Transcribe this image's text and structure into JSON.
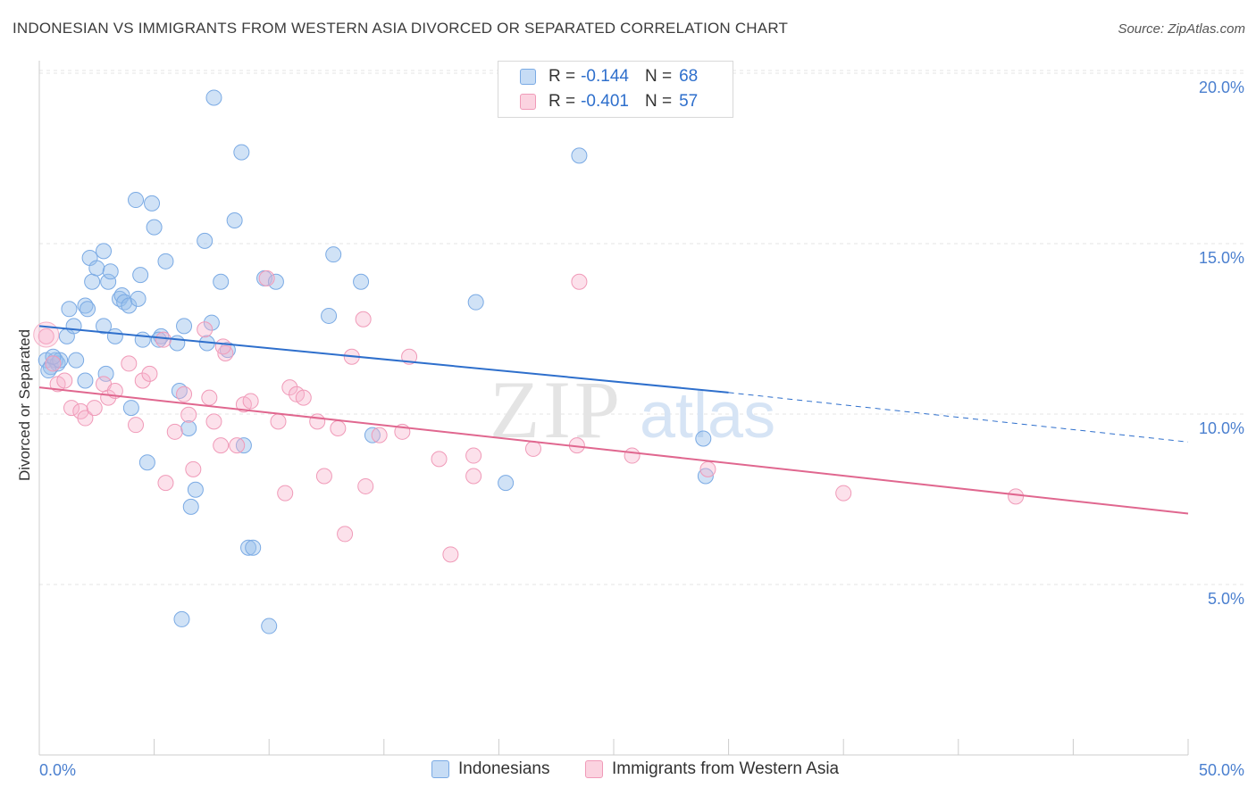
{
  "title": "INDONESIAN VS IMMIGRANTS FROM WESTERN ASIA DIVORCED OR SEPARATED CORRELATION CHART",
  "source": "Source: ZipAtlas.com",
  "watermark": {
    "zip": "ZIP",
    "atlas": "atlas"
  },
  "colors": {
    "blue": "#6a9fdc",
    "blue_line": "#2e6fcc",
    "pink": "#f08cae",
    "pink_line": "#e0678f",
    "axis_text": "#4a7fcf"
  },
  "legend": {
    "rows": [
      {
        "r_label": "R =",
        "r_value": "-0.144",
        "n_label": "N =",
        "n_value": "68"
      },
      {
        "r_label": "R =",
        "r_value": "-0.401",
        "n_label": "N =",
        "n_value": "57"
      }
    ]
  },
  "bottom_legend": {
    "series1": "Indonesians",
    "series2": "Immigrants from Western Asia"
  },
  "chart_data": {
    "type": "scatter",
    "title": "INDONESIAN VS IMMIGRANTS FROM WESTERN ASIA DIVORCED OR SEPARATED CORRELATION CHART",
    "xlabel": "",
    "ylabel": "Divorced or Separated",
    "xlim": [
      0,
      50
    ],
    "ylim": [
      0,
      20.5
    ],
    "x_tick_labels": [
      "0.0%",
      "50.0%"
    ],
    "y_ticks": [
      5,
      10,
      15,
      20
    ],
    "y_tick_labels": [
      "5.0%",
      "10.0%",
      "15.0%",
      "20.0%"
    ],
    "series": [
      {
        "name": "Indonesians",
        "R": -0.144,
        "N": 68,
        "trend": {
          "x1": 0,
          "y1": 13.0,
          "x2": 30,
          "y2": 11.05,
          "dash_x2": 50,
          "dash_y2": 9.6
        },
        "points": [
          [
            0.3,
            12.0
          ],
          [
            0.5,
            11.8
          ],
          [
            0.7,
            12.0
          ],
          [
            0.8,
            11.9
          ],
          [
            0.9,
            12.0
          ],
          [
            0.4,
            11.7
          ],
          [
            1.2,
            12.7
          ],
          [
            1.3,
            13.5
          ],
          [
            1.5,
            13.0
          ],
          [
            2.0,
            13.6
          ],
          [
            2.0,
            11.4
          ],
          [
            2.1,
            13.5
          ],
          [
            2.2,
            15.0
          ],
          [
            2.3,
            14.3
          ],
          [
            2.5,
            14.7
          ],
          [
            2.8,
            13.0
          ],
          [
            2.8,
            15.2
          ],
          [
            2.9,
            11.6
          ],
          [
            3.0,
            14.3
          ],
          [
            3.1,
            14.6
          ],
          [
            3.3,
            12.7
          ],
          [
            3.5,
            13.8
          ],
          [
            3.6,
            13.9
          ],
          [
            3.7,
            13.7
          ],
          [
            3.9,
            13.6
          ],
          [
            4.0,
            10.6
          ],
          [
            4.2,
            16.7
          ],
          [
            4.3,
            13.8
          ],
          [
            4.4,
            14.5
          ],
          [
            4.5,
            12.6
          ],
          [
            4.7,
            9.0
          ],
          [
            4.9,
            16.6
          ],
          [
            5.0,
            15.9
          ],
          [
            5.3,
            12.7
          ],
          [
            5.5,
            14.9
          ],
          [
            6.0,
            12.5
          ],
          [
            6.1,
            11.1
          ],
          [
            6.2,
            4.4
          ],
          [
            6.3,
            13.0
          ],
          [
            6.5,
            10.0
          ],
          [
            6.6,
            7.7
          ],
          [
            6.8,
            8.2
          ],
          [
            7.2,
            15.5
          ],
          [
            7.3,
            12.5
          ],
          [
            7.5,
            13.1
          ],
          [
            7.6,
            19.7
          ],
          [
            7.9,
            14.3
          ],
          [
            8.2,
            12.3
          ],
          [
            8.5,
            16.1
          ],
          [
            8.8,
            18.1
          ],
          [
            8.9,
            9.5
          ],
          [
            9.1,
            6.5
          ],
          [
            9.3,
            6.5
          ],
          [
            9.8,
            14.4
          ],
          [
            10.3,
            14.3
          ],
          [
            10.0,
            4.2
          ],
          [
            12.6,
            13.3
          ],
          [
            12.8,
            15.1
          ],
          [
            14.0,
            14.3
          ],
          [
            14.5,
            9.8
          ],
          [
            19.0,
            13.7
          ],
          [
            20.3,
            8.4
          ],
          [
            23.5,
            18.0
          ],
          [
            28.9,
            9.7
          ],
          [
            29.0,
            8.6
          ],
          [
            5.2,
            12.6
          ],
          [
            1.6,
            12.0
          ],
          [
            0.6,
            12.1
          ]
        ]
      },
      {
        "name": "Immigrants from Western Asia",
        "R": -0.401,
        "N": 57,
        "trend": {
          "x1": 0,
          "y1": 11.2,
          "x2": 50,
          "y2": 7.5
        },
        "points": [
          [
            0.3,
            12.7
          ],
          [
            0.6,
            11.9
          ],
          [
            0.8,
            11.3
          ],
          [
            1.1,
            11.4
          ],
          [
            1.4,
            10.6
          ],
          [
            1.8,
            10.5
          ],
          [
            2.0,
            10.3
          ],
          [
            2.4,
            10.6
          ],
          [
            2.8,
            11.3
          ],
          [
            3.0,
            10.9
          ],
          [
            3.3,
            11.1
          ],
          [
            3.9,
            11.9
          ],
          [
            4.2,
            10.1
          ],
          [
            4.5,
            11.4
          ],
          [
            4.8,
            11.6
          ],
          [
            5.4,
            12.6
          ],
          [
            5.5,
            8.4
          ],
          [
            5.9,
            9.9
          ],
          [
            6.3,
            11.0
          ],
          [
            6.5,
            10.4
          ],
          [
            6.7,
            8.8
          ],
          [
            7.2,
            12.9
          ],
          [
            7.4,
            10.9
          ],
          [
            7.6,
            10.2
          ],
          [
            7.9,
            9.5
          ],
          [
            8.1,
            12.2
          ],
          [
            8.6,
            9.5
          ],
          [
            8.9,
            10.7
          ],
          [
            9.2,
            10.8
          ],
          [
            9.9,
            14.4
          ],
          [
            10.4,
            10.2
          ],
          [
            10.9,
            11.2
          ],
          [
            10.7,
            8.1
          ],
          [
            11.2,
            11.0
          ],
          [
            11.5,
            10.9
          ],
          [
            12.1,
            10.2
          ],
          [
            12.4,
            8.6
          ],
          [
            13.0,
            10.0
          ],
          [
            13.3,
            6.9
          ],
          [
            13.6,
            12.1
          ],
          [
            14.1,
            13.2
          ],
          [
            14.2,
            8.3
          ],
          [
            14.8,
            9.8
          ],
          [
            15.8,
            9.9
          ],
          [
            16.1,
            12.1
          ],
          [
            17.4,
            9.1
          ],
          [
            17.9,
            6.3
          ],
          [
            18.9,
            8.6
          ],
          [
            18.9,
            9.2
          ],
          [
            21.5,
            9.4
          ],
          [
            23.4,
            9.5
          ],
          [
            23.5,
            14.3
          ],
          [
            25.8,
            9.2
          ],
          [
            29.1,
            8.8
          ],
          [
            35.0,
            8.1
          ],
          [
            42.5,
            8.0
          ],
          [
            8.0,
            12.4
          ]
        ]
      }
    ]
  }
}
